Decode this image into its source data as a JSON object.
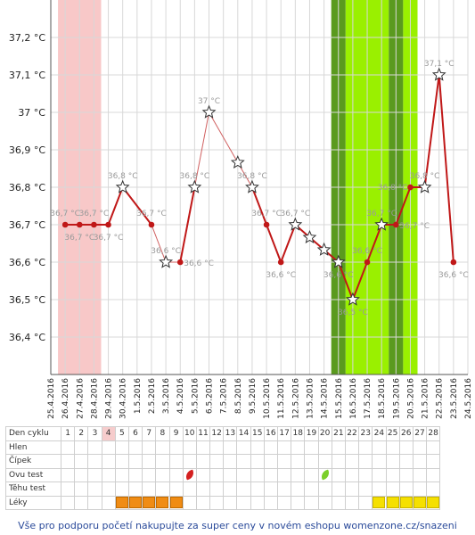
{
  "chart_data": {
    "type": "line",
    "ylim": [
      36.3,
      37.3
    ],
    "yticks": [
      {
        "value": 36.4,
        "label": "36,4 °C"
      },
      {
        "value": 36.5,
        "label": "36,5 °C"
      },
      {
        "value": 36.6,
        "label": "36,6 °C"
      },
      {
        "value": 36.7,
        "label": "36,7 °C"
      },
      {
        "value": 36.8,
        "label": "36,8 °C"
      },
      {
        "value": 36.9,
        "label": "36,9 °C"
      },
      {
        "value": 37.0,
        "label": "37 °C"
      },
      {
        "value": 37.1,
        "label": "37,1 °C"
      },
      {
        "value": 37.2,
        "label": "37,2 °C"
      }
    ],
    "x": [
      "25.4.2016",
      "26.4.2016",
      "27.4.2016",
      "28.4.2016",
      "29.4.2016",
      "30.4.2016",
      "1.5.2016",
      "2.5.2016",
      "3.5.2016",
      "4.5.2016",
      "5.5.2016",
      "6.5.2016",
      "7.5.2016",
      "8.5.2016",
      "9.5.2016",
      "10.5.2016",
      "11.5.2016",
      "12.5.2016",
      "13.5.2016",
      "14.5.2016",
      "15.5.2016",
      "16.5.2016",
      "17.5.2016",
      "18.5.2016",
      "19.5.2016",
      "20.5.2016",
      "21.5.2016",
      "22.5.2016",
      "23.5.2016",
      "24.5.2016"
    ],
    "bands": [
      {
        "from": 0.5,
        "to": 3.5,
        "color": "#f8c8c8"
      },
      {
        "from": 19.5,
        "to": 20.5,
        "color": "#5a9a1e"
      },
      {
        "from": 20.5,
        "to": 23.5,
        "color": "#9af000"
      },
      {
        "from": 23.5,
        "to": 24.5,
        "color": "#5a9a1e"
      },
      {
        "from": 24.5,
        "to": 25.5,
        "color": "#9af000"
      }
    ],
    "series": [
      {
        "points": [
          {
            "x": "26.4.2016",
            "y": 36.7,
            "label": "36,7 °C",
            "marker": "dot",
            "label_pos": "above"
          },
          {
            "x": "27.4.2016",
            "y": 36.7,
            "label": "36,7 °C",
            "marker": "dot",
            "label_pos": "below"
          },
          {
            "x": "28.4.2016",
            "y": 36.7,
            "label": "36,7 °C",
            "marker": "dot",
            "label_pos": "above"
          },
          {
            "x": "29.4.2016",
            "y": 36.7,
            "label": "36,7 °C",
            "marker": "dot",
            "label_pos": "below"
          },
          {
            "x": "30.4.2016",
            "y": 36.8,
            "label": "36,8 °C",
            "marker": "star",
            "label_pos": "above"
          },
          {
            "x": "2.5.2016",
            "y": 36.7,
            "label": "36,7 °C",
            "marker": "dot",
            "label_pos": "above"
          },
          {
            "x": "3.5.2016",
            "y": 36.6,
            "label": "36,6 °C",
            "marker": "star",
            "label_pos": "above"
          },
          {
            "x": "4.5.2016",
            "y": 36.6,
            "label": "36,6 °C",
            "marker": "dot",
            "label_pos": "right"
          },
          {
            "x": "5.5.2016",
            "y": 36.8,
            "label": "36,8 °C",
            "marker": "star",
            "label_pos": "above"
          },
          {
            "x": "6.5.2016",
            "y": 37.0,
            "label": "37 °C",
            "marker": "star",
            "label_pos": "above"
          },
          {
            "x": "8.5.2016",
            "y": 36.866,
            "label": "",
            "marker": "star",
            "label_pos": "none"
          },
          {
            "x": "9.5.2016",
            "y": 36.8,
            "label": "36,8 °C",
            "marker": "star",
            "label_pos": "above"
          },
          {
            "x": "10.5.2016",
            "y": 36.7,
            "label": "36,7 °C",
            "marker": "dot",
            "label_pos": "above"
          },
          {
            "x": "11.5.2016",
            "y": 36.6,
            "label": "36,6 °C",
            "marker": "dot",
            "label_pos": "below"
          },
          {
            "x": "12.5.2016",
            "y": 36.7,
            "label": "36,7 °C",
            "marker": "star",
            "label_pos": "above"
          },
          {
            "x": "13.5.2016",
            "y": 36.666,
            "label": "",
            "marker": "star",
            "label_pos": "none"
          },
          {
            "x": "14.5.2016",
            "y": 36.633,
            "label": "",
            "marker": "star",
            "label_pos": "none"
          },
          {
            "x": "15.5.2016",
            "y": 36.6,
            "label": "36,6 °C",
            "marker": "star",
            "label_pos": "below"
          },
          {
            "x": "16.5.2016",
            "y": 36.5,
            "label": "36,5 °C",
            "marker": "star",
            "label_pos": "below"
          },
          {
            "x": "17.5.2016",
            "y": 36.6,
            "label": "36,6 °C",
            "marker": "dot",
            "label_pos": "above"
          },
          {
            "x": "18.5.2016",
            "y": 36.7,
            "label": "36,7 °C",
            "marker": "star",
            "label_pos": "above"
          },
          {
            "x": "19.5.2016",
            "y": 36.7,
            "label": "36,7 °C",
            "marker": "dot",
            "label_pos": "right"
          },
          {
            "x": "20.5.2016",
            "y": 36.8,
            "label": "36,8 °C",
            "marker": "dot",
            "label_pos": "left"
          },
          {
            "x": "21.5.2016",
            "y": 36.8,
            "label": "36,8 °C",
            "marker": "star",
            "label_pos": "above"
          },
          {
            "x": "22.5.2016",
            "y": 37.1,
            "label": "37,1 °C",
            "marker": "star",
            "label_pos": "above"
          },
          {
            "x": "23.5.2016",
            "y": 36.6,
            "label": "36,6 °C",
            "marker": "dot",
            "label_pos": "below"
          }
        ]
      }
    ],
    "thin_segments": [
      [
        5,
        6
      ],
      [
        6,
        7
      ],
      [
        8,
        9
      ],
      [
        9,
        10
      ],
      [
        10,
        11
      ]
    ],
    "grid": true
  },
  "cycle_table": {
    "header_label": "Den cyklu",
    "days": [
      "1",
      "2",
      "3",
      "4",
      "5",
      "6",
      "7",
      "8",
      "9",
      "10",
      "11",
      "12",
      "13",
      "14",
      "15",
      "16",
      "17",
      "18",
      "19",
      "20",
      "21",
      "22",
      "23",
      "24",
      "25",
      "26",
      "27",
      "28"
    ],
    "today_day": "4",
    "rows": [
      {
        "label": "Hlen",
        "marks": []
      },
      {
        "label": "Čípek",
        "marks": []
      },
      {
        "label": "Ovu test",
        "marks": [
          {
            "day": "10",
            "type": "leaf-red"
          },
          {
            "day": "20",
            "type": "leaf-green"
          }
        ]
      },
      {
        "label": "Těhu test",
        "marks": []
      },
      {
        "label": "Léky",
        "marks": [
          {
            "day": "5",
            "type": "lek-orange"
          },
          {
            "day": "6",
            "type": "lek-orange"
          },
          {
            "day": "7",
            "type": "lek-orange"
          },
          {
            "day": "8",
            "type": "lek-orange"
          },
          {
            "day": "9",
            "type": "lek-orange"
          },
          {
            "day": "24",
            "type": "lek-yellow"
          },
          {
            "day": "25",
            "type": "lek-yellow"
          },
          {
            "day": "26",
            "type": "lek-yellow"
          },
          {
            "day": "27",
            "type": "lek-yellow"
          },
          {
            "day": "28",
            "type": "lek-yellow"
          }
        ]
      }
    ]
  },
  "footer": {
    "text": "Vše pro podporu početí nakupujte za super ceny v novém eshopu womenzone.cz/snazeni"
  },
  "colors": {
    "line": "#c01818",
    "thin_line": "#d06060",
    "grid": "#d8d8d8"
  }
}
